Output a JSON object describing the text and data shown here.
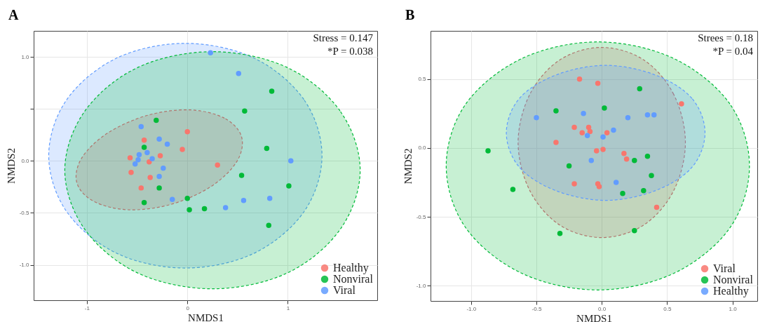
{
  "chart_data": [
    {
      "type": "scatter",
      "title": "A",
      "xlabel": "NMDS1",
      "ylabel": "NMDS2",
      "xlim": [
        -1.53,
        1.89
      ],
      "ylim": [
        -1.34,
        1.25
      ],
      "xticks": [
        -1,
        0,
        1
      ],
      "yticks": [
        {
          "value": -1,
          "label": "-1.0"
        },
        {
          "value": -0.5,
          "label": "-0.5"
        },
        {
          "value": 0,
          "label": "0.0"
        },
        {
          "value": 0.5,
          "label": null
        },
        {
          "value": 1,
          "label": "1.0"
        }
      ],
      "grid": true,
      "legend": "bottom right",
      "marker": "circle",
      "annotations": [
        "Stress = 0.147",
        "*P = 0.038"
      ],
      "series": [
        {
          "type": "area",
          "marker": "none",
          "line_style": "dashed",
          "color": "#619cff",
          "x": [
            1.34,
            1.16,
            0.66,
            -0.02,
            -0.7,
            -1.2,
            -1.38,
            -1.2,
            -0.7,
            -0.02,
            0.66,
            1.16
          ],
          "values": [
            0.05,
            0.59,
            0.99,
            1.13,
            0.99,
            0.59,
            0.05,
            -0.49,
            -0.89,
            -1.03,
            -0.89,
            -0.49
          ]
        },
        {
          "type": "area",
          "marker": "none",
          "line_style": "dashed",
          "color": "#00ba38",
          "x": [
            1.72,
            1.52,
            0.99,
            0.25,
            -0.49,
            -1.02,
            -1.22,
            -1.02,
            -0.49,
            0.25,
            0.99,
            1.52
          ],
          "values": [
            -0.09,
            0.48,
            0.9,
            1.05,
            0.9,
            0.48,
            -0.09,
            -0.66,
            -1.08,
            -1.23,
            -1.08,
            -0.66
          ]
        },
        {
          "type": "area",
          "marker": "none",
          "line_style": "dashed",
          "color": "#b0756d",
          "x": [
            0.54,
            0.37,
            0.03,
            -0.39,
            -0.79,
            -1.05,
            -1.1,
            -0.93,
            -0.59,
            -0.17,
            0.23,
            0.49
          ],
          "values": [
            0.23,
            0.41,
            0.49,
            0.44,
            0.27,
            0.03,
            -0.21,
            -0.39,
            -0.47,
            -0.42,
            -0.25,
            -0.01
          ]
        },
        {
          "name": "Healthy",
          "color": "#f8766d",
          "x": [
            0.0,
            -0.05,
            0.3,
            -0.43,
            -0.27,
            -0.38,
            -0.57,
            -0.56,
            -0.37,
            -0.46
          ],
          "values": [
            0.28,
            0.11,
            -0.04,
            0.2,
            0.05,
            -0.01,
            0.03,
            -0.11,
            -0.16,
            -0.26
          ]
        },
        {
          "name": "Nonviral",
          "color": "#00ba38",
          "x": [
            -0.31,
            -0.43,
            -0.28,
            -0.43,
            0.0,
            0.02,
            0.17,
            0.84,
            0.57,
            0.79,
            0.54,
            1.01,
            0.81
          ],
          "values": [
            0.39,
            0.13,
            -0.26,
            -0.4,
            -0.36,
            -0.47,
            -0.46,
            0.67,
            0.48,
            0.12,
            -0.14,
            -0.24,
            -0.62
          ]
        },
        {
          "name": "Viral",
          "color": "#619cff",
          "x": [
            0.23,
            0.51,
            -0.46,
            -0.28,
            -0.2,
            -0.4,
            -0.48,
            -0.35,
            -0.49,
            -0.52,
            -0.24,
            -0.28,
            -0.15,
            0.38,
            0.56,
            0.82,
            1.03
          ],
          "values": [
            1.04,
            0.84,
            0.33,
            0.21,
            0.16,
            0.08,
            0.06,
            0.02,
            0.01,
            -0.03,
            -0.07,
            -0.15,
            -0.37,
            -0.45,
            -0.38,
            -0.36,
            0.0
          ]
        }
      ]
    },
    {
      "type": "scatter",
      "title": "B",
      "xlabel": "NMDS1",
      "ylabel": "NMDS2",
      "xlim": [
        -1.31,
        1.19
      ],
      "ylim": [
        -1.11,
        0.85
      ],
      "xticks": [
        {
          "value": -1,
          "label": "-1.0"
        },
        {
          "value": -0.5,
          "label": "-0.5"
        },
        {
          "value": 0,
          "label": "0.0"
        },
        {
          "value": 0.5,
          "label": "0.5"
        },
        {
          "value": 1,
          "label": "1.0"
        }
      ],
      "yticks": [
        {
          "value": -1,
          "label": "-1.0"
        },
        {
          "value": -0.5,
          "label": "-0.5"
        },
        {
          "value": 0,
          "label": "0.0"
        },
        {
          "value": 0.5,
          "label": "0.5"
        }
      ],
      "grid": true,
      "legend": "bottom right",
      "marker": "circle",
      "annotations": [
        "Strees = 0.18",
        "*P = 0.04"
      ],
      "series": [
        {
          "type": "area",
          "marker": "none",
          "line_style": "dashed",
          "color": "#00ba38",
          "x": [
            1.13,
            0.98,
            0.55,
            -0.03,
            -0.61,
            -1.04,
            -1.19,
            -1.04,
            -0.61,
            -0.03,
            0.55,
            0.98
          ],
          "values": [
            -0.13,
            0.32,
            0.65,
            0.77,
            0.65,
            0.32,
            -0.13,
            -0.58,
            -0.91,
            -1.03,
            -0.91,
            -0.58
          ]
        },
        {
          "type": "area",
          "marker": "none",
          "line_style": "dashed",
          "color": "#b0756d",
          "x": [
            0.64,
            0.55,
            0.32,
            0.0,
            -0.32,
            -0.55,
            -0.64,
            -0.55,
            -0.32,
            0.0,
            0.32,
            0.55
          ],
          "values": [
            0.04,
            0.39,
            0.64,
            0.73,
            0.64,
            0.39,
            0.04,
            -0.31,
            -0.56,
            -0.65,
            -0.56,
            -0.31
          ]
        },
        {
          "type": "area",
          "marker": "none",
          "line_style": "dashed",
          "color": "#619cff",
          "x": [
            0.79,
            0.69,
            0.41,
            0.03,
            -0.35,
            -0.63,
            -0.73,
            -0.63,
            -0.35,
            0.03,
            0.41,
            0.69
          ],
          "values": [
            0.11,
            0.36,
            0.53,
            0.6,
            0.53,
            0.36,
            0.11,
            -0.14,
            -0.31,
            -0.38,
            -0.31,
            -0.14
          ]
        },
        {
          "name": "Viral",
          "color": "#f8766d",
          "x": [
            -0.17,
            -0.03,
            0.61,
            -0.21,
            -0.1,
            -0.09,
            -0.15,
            0.04,
            -0.35,
            -0.04,
            0.01,
            0.17,
            0.19,
            -0.21,
            -0.03,
            -0.02,
            0.42
          ],
          "values": [
            0.5,
            0.47,
            0.32,
            0.15,
            0.15,
            0.12,
            0.11,
            0.11,
            0.04,
            -0.02,
            -0.01,
            -0.04,
            -0.08,
            -0.26,
            -0.26,
            -0.28,
            -0.43
          ]
        },
        {
          "name": "Nonviral",
          "color": "#00ba38",
          "x": [
            0.29,
            -0.35,
            0.02,
            -0.87,
            -0.25,
            0.25,
            0.35,
            0.38,
            -0.68,
            0.16,
            0.32,
            -0.32,
            0.25
          ],
          "values": [
            0.43,
            0.27,
            0.29,
            -0.02,
            -0.13,
            -0.09,
            -0.06,
            -0.2,
            -0.3,
            -0.33,
            -0.31,
            -0.62,
            -0.6
          ]
        },
        {
          "name": "Healthy",
          "color": "#619cff",
          "x": [
            -0.5,
            -0.14,
            0.2,
            0.35,
            0.4,
            0.09,
            -0.11,
            0.01,
            -0.08,
            0.11
          ],
          "values": [
            0.22,
            0.25,
            0.22,
            0.24,
            0.24,
            0.13,
            0.09,
            0.08,
            -0.09,
            -0.25
          ]
        }
      ]
    }
  ]
}
